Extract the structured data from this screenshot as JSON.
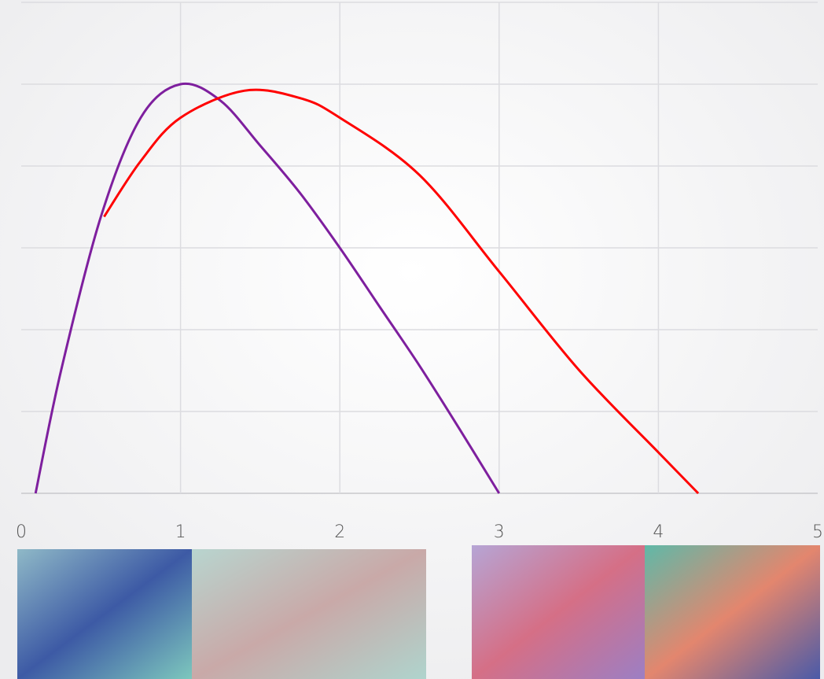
{
  "chart_data": {
    "type": "line",
    "xlim": [
      0,
      5
    ],
    "xticks": [
      0,
      1,
      2,
      3,
      4,
      5
    ],
    "ylim": [
      0,
      6
    ],
    "yticks": [
      0,
      1,
      2,
      3,
      4,
      5,
      6
    ],
    "grid": true,
    "series": [
      {
        "color": "#7e1f9e",
        "x": [
          0.09,
          0.25,
          0.5,
          0.75,
          1.0,
          1.25,
          1.5,
          1.75,
          2.0,
          2.25,
          2.5,
          2.75,
          3.0
        ],
        "values": [
          0,
          1.5,
          3.38,
          4.59,
          5.0,
          4.8,
          4.25,
          3.67,
          3.0,
          2.28,
          1.56,
          0.79,
          0
        ]
      },
      {
        "color": "#ff0000",
        "x": [
          0.52,
          0.75,
          1.0,
          1.4,
          1.75,
          2.0,
          2.5,
          3.0,
          3.5,
          4.0,
          4.25
        ],
        "values": [
          3.38,
          4.06,
          4.59,
          4.92,
          4.83,
          4.59,
          3.89,
          2.71,
          1.51,
          0.5,
          0
        ]
      }
    ]
  }
}
